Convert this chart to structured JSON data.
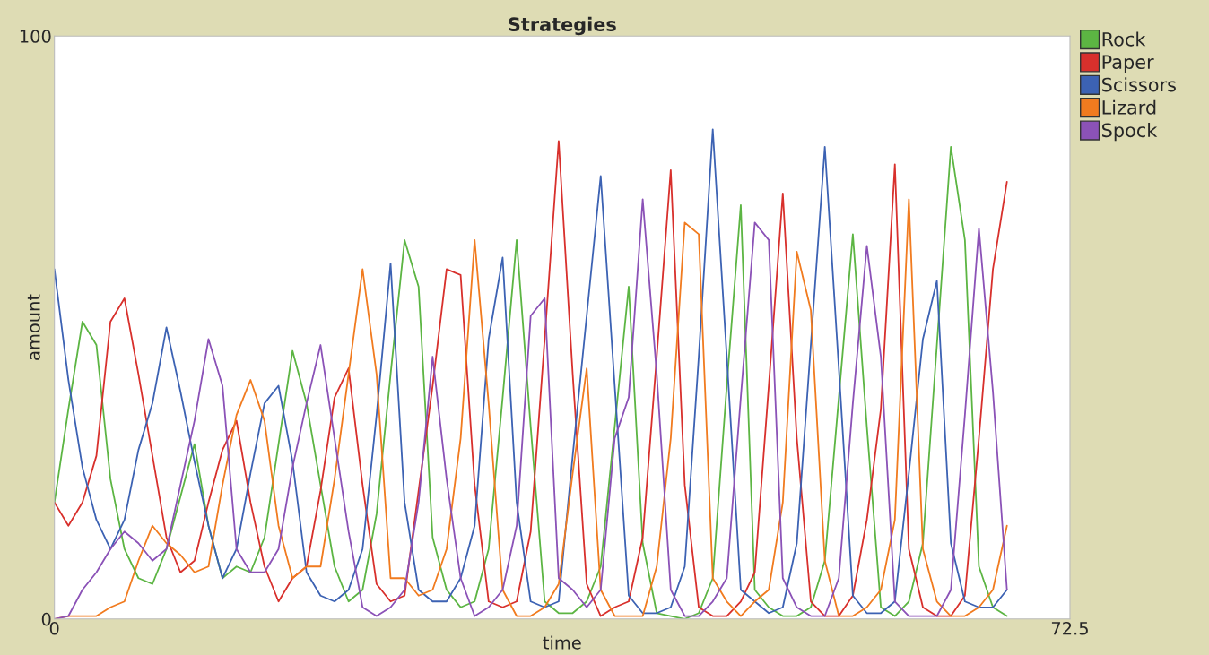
{
  "chart_data": {
    "type": "line",
    "title": "Strategies",
    "xlabel": "time",
    "ylabel": "amount",
    "x": [
      0,
      1,
      2,
      3,
      4,
      5,
      6,
      7,
      8,
      9,
      10,
      11,
      12,
      13,
      14,
      15,
      16,
      17,
      18,
      19,
      20,
      21,
      22,
      23,
      24,
      25,
      26,
      27,
      28,
      29,
      30,
      31,
      32,
      33,
      34,
      35,
      36,
      37,
      38,
      39,
      40,
      41,
      42,
      43,
      44,
      45,
      46,
      47,
      48,
      49,
      50,
      51,
      52,
      53,
      54,
      55,
      56,
      57,
      58,
      59,
      60,
      61,
      62,
      63,
      64,
      65,
      66,
      67,
      68
    ],
    "xlim": [
      0,
      72.5
    ],
    "xticks": [
      0,
      72.5
    ],
    "ylim": [
      0,
      100
    ],
    "yticks": [
      0,
      100
    ],
    "grid": false,
    "legend": "right",
    "marker": "none",
    "line_style": "solid",
    "series": [
      {
        "name": "Rock",
        "color": "#5cb543",
        "values": [
          20,
          36,
          51,
          47,
          24,
          12,
          7,
          6,
          12,
          21,
          30,
          16,
          7,
          9,
          8,
          14,
          30,
          46,
          37,
          23,
          9,
          3,
          5,
          18,
          42,
          65,
          57,
          14,
          5,
          2,
          3,
          12,
          38,
          65,
          33,
          3,
          1,
          1,
          3,
          9,
          33,
          57,
          13,
          1,
          0.5,
          0,
          1,
          7,
          40,
          71,
          5,
          2,
          0.5,
          0.5,
          2,
          10,
          38,
          66,
          33,
          2,
          0.5,
          3,
          13,
          47,
          81,
          65,
          9,
          2,
          0.5
        ]
      },
      {
        "name": "Paper",
        "color": "#d8302c",
        "values": [
          20,
          16,
          20,
          28,
          51,
          55,
          42,
          28,
          14,
          8,
          10,
          20,
          29,
          34,
          20,
          9,
          3,
          7,
          9,
          22,
          38,
          43,
          23,
          6,
          3,
          4,
          22,
          40,
          60,
          59,
          23,
          3,
          2,
          3,
          15,
          48,
          82,
          42,
          6,
          0.5,
          2,
          3,
          14,
          45,
          77,
          23,
          2,
          0.5,
          0.5,
          3,
          8,
          40,
          73,
          31,
          3,
          0.5,
          0.5,
          4,
          17,
          36,
          78,
          12,
          2,
          0.5,
          0.5,
          4,
          31,
          60,
          75
        ]
      },
      {
        "name": "Scissors",
        "color": "#3c62b3",
        "values": [
          60,
          41,
          26,
          17,
          12,
          17,
          29,
          37,
          50,
          39,
          27,
          16,
          7,
          12,
          25,
          37,
          40,
          27,
          8,
          4,
          3,
          5,
          12,
          35,
          61,
          20,
          5,
          3,
          3,
          7,
          16,
          48,
          62,
          20,
          3,
          2,
          3,
          28,
          52,
          76,
          40,
          4,
          1,
          1,
          2,
          9,
          45,
          84,
          45,
          5,
          3,
          1,
          2,
          13,
          47,
          81,
          43,
          4,
          1,
          1,
          3,
          25,
          48,
          58,
          13,
          3,
          2,
          2,
          5
        ]
      },
      {
        "name": "Lizard",
        "color": "#f17b1f",
        "values": [
          0,
          0.5,
          0.5,
          0.5,
          2,
          3,
          10,
          16,
          13,
          11,
          8,
          9,
          23,
          35,
          41,
          34,
          16,
          7,
          9,
          9,
          24,
          42,
          60,
          42,
          7,
          7,
          4,
          5,
          12,
          31,
          65,
          37,
          5,
          0.5,
          0.5,
          2,
          6,
          25,
          43,
          5,
          0.5,
          0.5,
          0.5,
          9,
          31,
          68,
          66,
          7,
          3,
          0.5,
          3,
          5,
          20,
          63,
          53,
          10,
          0.5,
          0.5,
          2,
          5,
          17,
          72,
          12,
          3,
          0.5,
          0.5,
          2,
          5,
          16
        ]
      },
      {
        "name": "Spock",
        "color": "#8b52b7",
        "values": [
          0,
          0.5,
          5,
          8,
          12,
          15,
          13,
          10,
          12,
          23,
          34,
          48,
          40,
          12,
          8,
          8,
          12,
          26,
          37,
          47,
          31,
          15,
          2,
          0.5,
          2,
          5,
          20,
          45,
          24,
          7,
          0.5,
          2,
          5,
          16,
          52,
          55,
          7,
          5,
          2,
          5,
          31,
          38,
          72,
          42,
          5,
          0.5,
          0.5,
          3,
          7,
          38,
          68,
          65,
          7,
          2,
          0.5,
          0.5,
          7,
          37,
          64,
          45,
          3,
          0.5,
          0.5,
          0.5,
          5,
          35,
          67,
          39,
          5
        ]
      }
    ]
  }
}
